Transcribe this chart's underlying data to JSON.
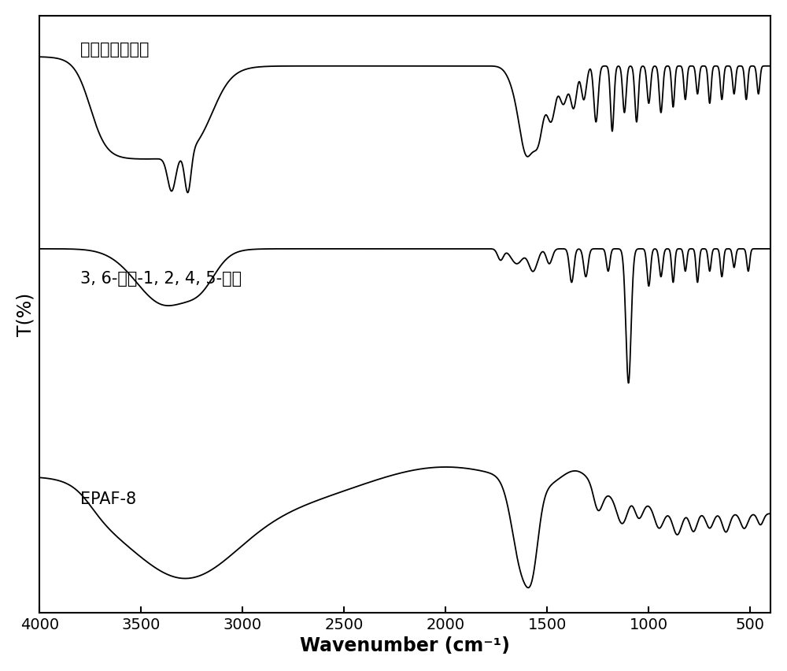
{
  "xlabel": "Wavenumber (cm⁻¹)",
  "ylabel": "T(%)",
  "xlim": [
    4000,
    400
  ],
  "xticks": [
    4000,
    3500,
    3000,
    2500,
    2000,
    1500,
    1000,
    500
  ],
  "background_color": "#ffffff",
  "line_color": "#000000",
  "label1": "三氨基胍盐酸盐",
  "label2": "3, 6-二氯-1, 2, 4, 5-四尴",
  "label3": "EPAF-8",
  "figsize": [
    10.0,
    8.53
  ],
  "dpi": 100
}
